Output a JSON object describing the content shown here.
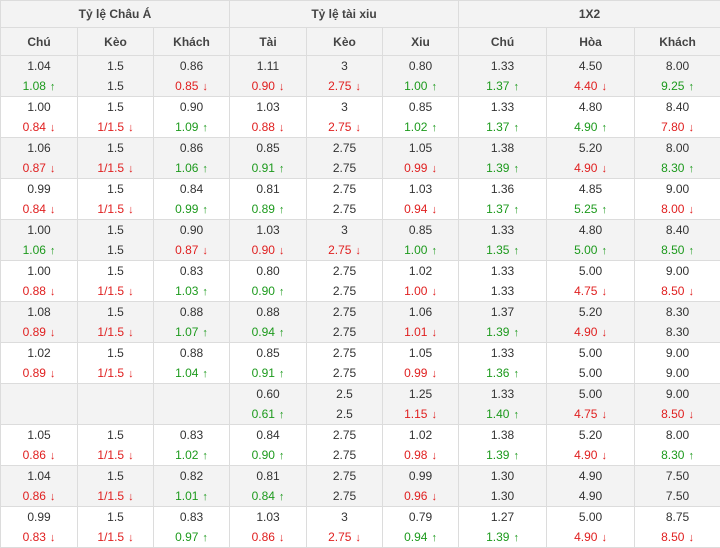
{
  "groups": [
    "Tỷ lệ Châu Á",
    "Tỷ lệ tài xiu",
    "1X2"
  ],
  "columns": [
    "Chú",
    "Kèo",
    "Khách",
    "Tài",
    "Kèo",
    "Xiu",
    "Chú",
    "Hòa",
    "Khách"
  ],
  "colors": {
    "up": "#1d9a1d",
    "down": "#e02020",
    "header_bg": "#f3f3f3",
    "alt_row_bg": "#f3f3f3"
  },
  "arrow_icons": {
    "up": "↑",
    "down": "↓"
  },
  "rows": [
    [
      [
        "1.04",
        [
          "1.08",
          "up"
        ]
      ],
      [
        "1.5",
        [
          "1.5",
          ""
        ]
      ],
      [
        "0.86",
        [
          "0.85",
          "down"
        ]
      ],
      [
        "1.11",
        [
          "0.90",
          "down"
        ]
      ],
      [
        "3",
        [
          "2.75",
          "down"
        ]
      ],
      [
        "0.80",
        [
          "1.00",
          "up"
        ]
      ],
      [
        "1.33",
        [
          "1.37",
          "up"
        ]
      ],
      [
        "4.50",
        [
          "4.40",
          "down"
        ]
      ],
      [
        "8.00",
        [
          "9.25",
          "up"
        ]
      ]
    ],
    [
      [
        "1.00",
        [
          "0.84",
          "down"
        ]
      ],
      [
        "1.5",
        [
          "1/1.5",
          "down"
        ]
      ],
      [
        "0.90",
        [
          "1.09",
          "up"
        ]
      ],
      [
        "1.03",
        [
          "0.88",
          "down"
        ]
      ],
      [
        "3",
        [
          "2.75",
          "down"
        ]
      ],
      [
        "0.85",
        [
          "1.02",
          "up"
        ]
      ],
      [
        "1.33",
        [
          "1.37",
          "up"
        ]
      ],
      [
        "4.80",
        [
          "4.90",
          "up"
        ]
      ],
      [
        "8.40",
        [
          "7.80",
          "down"
        ]
      ]
    ],
    [
      [
        "1.06",
        [
          "0.87",
          "down"
        ]
      ],
      [
        "1.5",
        [
          "1/1.5",
          "down"
        ]
      ],
      [
        "0.86",
        [
          "1.06",
          "up"
        ]
      ],
      [
        "0.85",
        [
          "0.91",
          "up"
        ]
      ],
      [
        "2.75",
        [
          "2.75",
          ""
        ]
      ],
      [
        "1.05",
        [
          "0.99",
          "down"
        ]
      ],
      [
        "1.38",
        [
          "1.39",
          "up"
        ]
      ],
      [
        "5.20",
        [
          "4.90",
          "down"
        ]
      ],
      [
        "8.00",
        [
          "8.30",
          "up"
        ]
      ]
    ],
    [
      [
        "0.99",
        [
          "0.84",
          "down"
        ]
      ],
      [
        "1.5",
        [
          "1/1.5",
          "down"
        ]
      ],
      [
        "0.84",
        [
          "0.99",
          "up"
        ]
      ],
      [
        "0.81",
        [
          "0.89",
          "up"
        ]
      ],
      [
        "2.75",
        [
          "2.75",
          ""
        ]
      ],
      [
        "1.03",
        [
          "0.94",
          "down"
        ]
      ],
      [
        "1.36",
        [
          "1.37",
          "up"
        ]
      ],
      [
        "4.85",
        [
          "5.25",
          "up"
        ]
      ],
      [
        "9.00",
        [
          "8.00",
          "down"
        ]
      ]
    ],
    [
      [
        "1.00",
        [
          "1.06",
          "up"
        ]
      ],
      [
        "1.5",
        [
          "1.5",
          ""
        ]
      ],
      [
        "0.90",
        [
          "0.87",
          "down"
        ]
      ],
      [
        "1.03",
        [
          "0.90",
          "down"
        ]
      ],
      [
        "3",
        [
          "2.75",
          "down"
        ]
      ],
      [
        "0.85",
        [
          "1.00",
          "up"
        ]
      ],
      [
        "1.33",
        [
          "1.35",
          "up"
        ]
      ],
      [
        "4.80",
        [
          "5.00",
          "up"
        ]
      ],
      [
        "8.40",
        [
          "8.50",
          "up"
        ]
      ]
    ],
    [
      [
        "1.00",
        [
          "0.88",
          "down"
        ]
      ],
      [
        "1.5",
        [
          "1/1.5",
          "down"
        ]
      ],
      [
        "0.83",
        [
          "1.03",
          "up"
        ]
      ],
      [
        "0.80",
        [
          "0.90",
          "up"
        ]
      ],
      [
        "2.75",
        [
          "2.75",
          ""
        ]
      ],
      [
        "1.02",
        [
          "1.00",
          "down"
        ]
      ],
      [
        "1.33",
        [
          "1.33",
          ""
        ]
      ],
      [
        "5.00",
        [
          "4.75",
          "down"
        ]
      ],
      [
        "9.00",
        [
          "8.50",
          "down"
        ]
      ]
    ],
    [
      [
        "1.08",
        [
          "0.89",
          "down"
        ]
      ],
      [
        "1.5",
        [
          "1/1.5",
          "down"
        ]
      ],
      [
        "0.88",
        [
          "1.07",
          "up"
        ]
      ],
      [
        "0.88",
        [
          "0.94",
          "up"
        ]
      ],
      [
        "2.75",
        [
          "2.75",
          ""
        ]
      ],
      [
        "1.06",
        [
          "1.01",
          "down"
        ]
      ],
      [
        "1.37",
        [
          "1.39",
          "up"
        ]
      ],
      [
        "5.20",
        [
          "4.90",
          "down"
        ]
      ],
      [
        "8.30",
        [
          "8.30",
          ""
        ]
      ]
    ],
    [
      [
        "1.02",
        [
          "0.89",
          "down"
        ]
      ],
      [
        "1.5",
        [
          "1/1.5",
          "down"
        ]
      ],
      [
        "0.88",
        [
          "1.04",
          "up"
        ]
      ],
      [
        "0.85",
        [
          "0.91",
          "up"
        ]
      ],
      [
        "2.75",
        [
          "2.75",
          ""
        ]
      ],
      [
        "1.05",
        [
          "0.99",
          "down"
        ]
      ],
      [
        "1.33",
        [
          "1.36",
          "up"
        ]
      ],
      [
        "5.00",
        [
          "5.00",
          ""
        ]
      ],
      [
        "9.00",
        [
          "9.00",
          ""
        ]
      ]
    ],
    [
      [
        "",
        [
          "",
          ""
        ]
      ],
      [
        "",
        [
          "",
          ""
        ]
      ],
      [
        "",
        [
          "",
          ""
        ]
      ],
      [
        "0.60",
        [
          "0.61",
          "up"
        ]
      ],
      [
        "2.5",
        [
          "2.5",
          ""
        ]
      ],
      [
        "1.25",
        [
          "1.15",
          "down"
        ]
      ],
      [
        "1.33",
        [
          "1.40",
          "up"
        ]
      ],
      [
        "5.00",
        [
          "4.75",
          "down"
        ]
      ],
      [
        "9.00",
        [
          "8.50",
          "down"
        ]
      ]
    ],
    [
      [
        "1.05",
        [
          "0.86",
          "down"
        ]
      ],
      [
        "1.5",
        [
          "1/1.5",
          "down"
        ]
      ],
      [
        "0.83",
        [
          "1.02",
          "up"
        ]
      ],
      [
        "0.84",
        [
          "0.90",
          "up"
        ]
      ],
      [
        "2.75",
        [
          "2.75",
          ""
        ]
      ],
      [
        "1.02",
        [
          "0.98",
          "down"
        ]
      ],
      [
        "1.38",
        [
          "1.39",
          "up"
        ]
      ],
      [
        "5.20",
        [
          "4.90",
          "down"
        ]
      ],
      [
        "8.00",
        [
          "8.30",
          "up"
        ]
      ]
    ],
    [
      [
        "1.04",
        [
          "0.86",
          "down"
        ]
      ],
      [
        "1.5",
        [
          "1/1.5",
          "down"
        ]
      ],
      [
        "0.82",
        [
          "1.01",
          "up"
        ]
      ],
      [
        "0.81",
        [
          "0.84",
          "up"
        ]
      ],
      [
        "2.75",
        [
          "2.75",
          ""
        ]
      ],
      [
        "0.99",
        [
          "0.96",
          "down"
        ]
      ],
      [
        "1.30",
        [
          "1.30",
          ""
        ]
      ],
      [
        "4.90",
        [
          "4.90",
          ""
        ]
      ],
      [
        "7.50",
        [
          "7.50",
          ""
        ]
      ]
    ],
    [
      [
        "0.99",
        [
          "0.83",
          "down"
        ]
      ],
      [
        "1.5",
        [
          "1/1.5",
          "down"
        ]
      ],
      [
        "0.83",
        [
          "0.97",
          "up"
        ]
      ],
      [
        "1.03",
        [
          "0.86",
          "down"
        ]
      ],
      [
        "3",
        [
          "2.75",
          "down"
        ]
      ],
      [
        "0.79",
        [
          "0.94",
          "up"
        ]
      ],
      [
        "1.27",
        [
          "1.39",
          "up"
        ]
      ],
      [
        "5.00",
        [
          "4.90",
          "down"
        ]
      ],
      [
        "8.75",
        [
          "8.50",
          "down"
        ]
      ]
    ]
  ]
}
